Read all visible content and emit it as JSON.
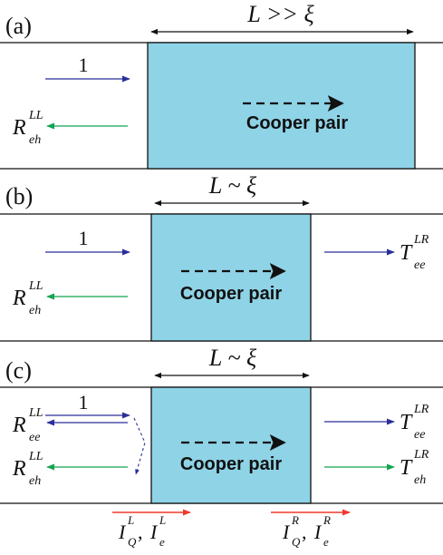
{
  "colors": {
    "superconductor_fill": "#8fd3e6",
    "incident_arrow": "#2a2f9a",
    "andreev_arrow": "#13a352",
    "current_arrow": "#ee3a2e",
    "line": "#111111"
  },
  "panel_a": {
    "label": "(a)",
    "length": "L >> ξ",
    "incident": "1",
    "cooper": "Cooper pair",
    "refl_eh": {
      "main": "R",
      "sup": "LL",
      "sub": "eh"
    }
  },
  "panel_b": {
    "label": "(b)",
    "length": "L ~ ξ",
    "incident": "1",
    "cooper": "Cooper pair",
    "refl_eh": {
      "main": "R",
      "sup": "LL",
      "sub": "eh"
    },
    "trans_ee": {
      "main": "T",
      "sup": "LR",
      "sub": "ee"
    }
  },
  "panel_c": {
    "label": "(c)",
    "length": "L ~ ξ",
    "incident": "1",
    "cooper": "Cooper pair",
    "refl_ee": {
      "main": "R",
      "sup": "LL",
      "sub": "ee"
    },
    "refl_eh": {
      "main": "R",
      "sup": "LL",
      "sub": "eh"
    },
    "trans_ee": {
      "main": "T",
      "sup": "LR",
      "sub": "ee"
    },
    "trans_eh": {
      "main": "T",
      "sup": "LR",
      "sub": "eh"
    },
    "current_left": {
      "q": "I",
      "q_sup": "L",
      "q_sub": "Q",
      "sep": ", ",
      "e": "I",
      "e_sup": "L",
      "e_sub": "e"
    },
    "current_right": {
      "q": "I",
      "q_sup": "R",
      "q_sub": "Q",
      "sep": ", ",
      "e": "I",
      "e_sup": "R",
      "e_sub": "e"
    }
  }
}
